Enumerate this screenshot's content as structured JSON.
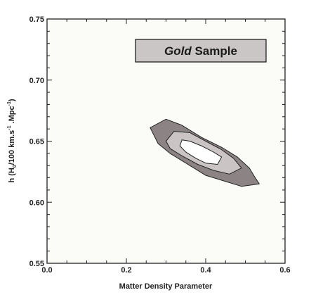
{
  "chart_data": {
    "type": "contour",
    "xlabel": "Matter Density Parameter",
    "ylabel": {
      "prefix": "h (H",
      "sub0": "0",
      "mid": "/100 km.s",
      "sup1": "-1",
      "mid2": " .Mpc",
      "sup2": "-1",
      "suffix": ")"
    },
    "xlim": [
      0.0,
      0.6
    ],
    "ylim": [
      0.55,
      0.75
    ],
    "x_ticks": [
      "0.0",
      "0.2",
      "0.4",
      "0.6"
    ],
    "x_tick_values": [
      0.0,
      0.2,
      0.4,
      0.6
    ],
    "y_ticks": [
      "0.55",
      "0.60",
      "0.65",
      "0.70",
      "0.75"
    ],
    "y_tick_values": [
      0.55,
      0.6,
      0.65,
      0.7,
      0.75
    ],
    "annotation": {
      "italic": "Gold",
      "rest": " Sample"
    },
    "contours": [
      {
        "level": "outer",
        "fill": "#8c8484",
        "points": [
          [
            0.26,
            0.661
          ],
          [
            0.3,
            0.668
          ],
          [
            0.34,
            0.663
          ],
          [
            0.39,
            0.653
          ],
          [
            0.44,
            0.645
          ],
          [
            0.48,
            0.637
          ],
          [
            0.51,
            0.628
          ],
          [
            0.525,
            0.62
          ],
          [
            0.535,
            0.615
          ],
          [
            0.49,
            0.613
          ],
          [
            0.44,
            0.618
          ],
          [
            0.4,
            0.622
          ],
          [
            0.35,
            0.632
          ],
          [
            0.31,
            0.64
          ],
          [
            0.28,
            0.648
          ]
        ]
      },
      {
        "level": "middle",
        "fill": "#cac4c4",
        "points": [
          [
            0.3,
            0.65
          ],
          [
            0.32,
            0.658
          ],
          [
            0.36,
            0.657
          ],
          [
            0.4,
            0.65
          ],
          [
            0.44,
            0.643
          ],
          [
            0.47,
            0.636
          ],
          [
            0.49,
            0.628
          ],
          [
            0.46,
            0.623
          ],
          [
            0.42,
            0.626
          ],
          [
            0.38,
            0.631
          ],
          [
            0.34,
            0.638
          ],
          [
            0.31,
            0.644
          ]
        ]
      },
      {
        "level": "inner",
        "fill": "#ffffff",
        "points": [
          [
            0.335,
            0.646
          ],
          [
            0.34,
            0.651
          ],
          [
            0.36,
            0.65
          ],
          [
            0.39,
            0.646
          ],
          [
            0.42,
            0.641
          ],
          [
            0.44,
            0.637
          ],
          [
            0.43,
            0.631
          ],
          [
            0.4,
            0.632
          ],
          [
            0.375,
            0.636
          ],
          [
            0.35,
            0.641
          ]
        ]
      }
    ]
  },
  "colors": {
    "plot_bg": "#fbfbf8",
    "annotation_bg": "#cbc6c6"
  }
}
